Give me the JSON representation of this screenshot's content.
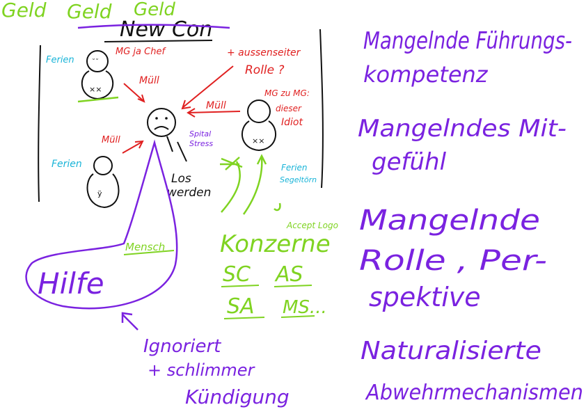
{
  "colors": {
    "green": "#7FD321",
    "purple": "#7A22E0",
    "red": "#E02020",
    "cyan": "#19B4D8",
    "black": "#111111"
  },
  "top_words": {
    "geld_1": "Geld",
    "geld_2": "Geld",
    "geld_3": "Geld",
    "new_con": "New Con"
  },
  "figures": {
    "top_left": {
      "vacation": "Ferien",
      "role": "MG ja Chef"
    },
    "bottom_left": {
      "vacation": "Ferien"
    },
    "right": {
      "vacation": "Ferien",
      "vacation_2": "Segeltörn",
      "role_1": "MG zu MG:",
      "role_2": "dieser",
      "role_3": "Idiot"
    },
    "center": {
      "label_1": "Los",
      "label_2": "werden",
      "hospital_1": "Spital",
      "hospital_2": "Stress"
    }
  },
  "arrows": {
    "muell_top": "Müll",
    "muell_right": "Müll",
    "muell_left": "Müll",
    "outsider_1": "+ aussenseiter",
    "outsider_2": "Rolle ?"
  },
  "help": {
    "label": "Hilfe",
    "person": "Mensch"
  },
  "corporations": {
    "title": "Konzerne",
    "accept": "Accept Logo",
    "items": [
      "SC",
      "AS",
      "SA",
      "MS..."
    ]
  },
  "bottom_list": {
    "line_1": "Ignoriert",
    "line_2": "+ schlimmer",
    "line_3": "Kündigung"
  },
  "right_list": [
    "Mangelnde Führungs-",
    "kompetenz",
    "Mangelndes Mit-",
    "gefühl",
    "Mangelnde",
    "Rolle , Per-",
    "spektive",
    "Naturalisierte",
    "Abwehrmechanismen"
  ]
}
